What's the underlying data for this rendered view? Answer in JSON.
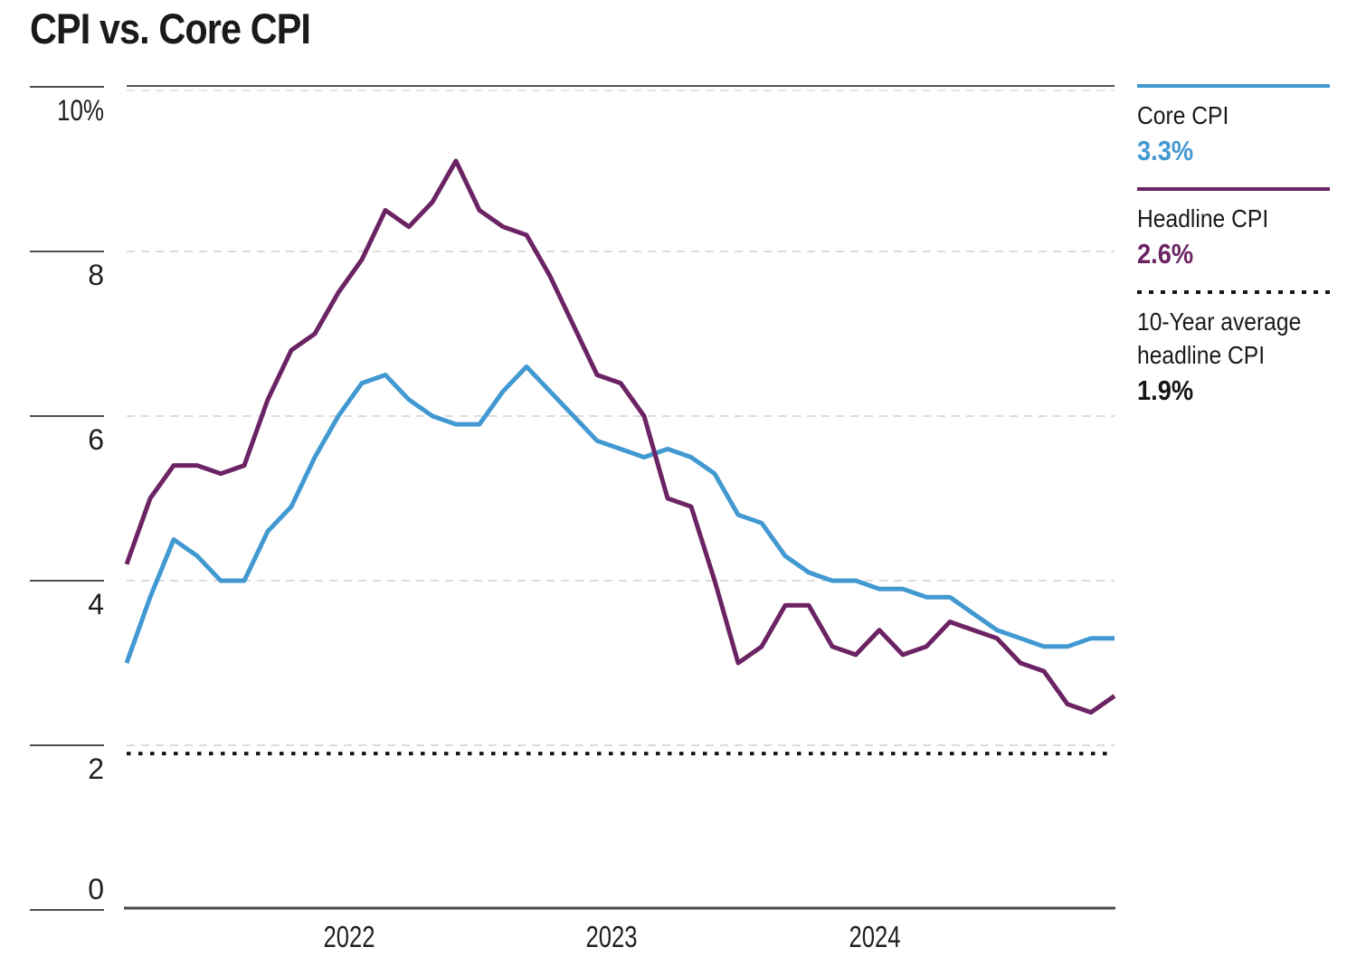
{
  "chart_data": {
    "type": "line",
    "title": "CPI vs. Core CPI",
    "unit": "percent, year-over-year",
    "ylim": [
      0,
      10
    ],
    "grid": "dashed horizontal at 2,4,6,8",
    "y_ticks": [
      {
        "value": 10,
        "label": "10%"
      },
      {
        "value": 8,
        "label": "8"
      },
      {
        "value": 6,
        "label": "6"
      },
      {
        "value": 4,
        "label": "4"
      },
      {
        "value": 2,
        "label": "2"
      },
      {
        "value": 0,
        "label": "0"
      }
    ],
    "x_year_labels": [
      "2022",
      "2023",
      "2024"
    ],
    "x": [
      "2021-04",
      "2021-05",
      "2021-06",
      "2021-07",
      "2021-08",
      "2021-09",
      "2021-10",
      "2021-11",
      "2021-12",
      "2022-01",
      "2022-02",
      "2022-03",
      "2022-04",
      "2022-05",
      "2022-06",
      "2022-07",
      "2022-08",
      "2022-09",
      "2022-10",
      "2022-11",
      "2022-12",
      "2023-01",
      "2023-02",
      "2023-03",
      "2023-04",
      "2023-05",
      "2023-06",
      "2023-07",
      "2023-08",
      "2023-09",
      "2023-10",
      "2023-11",
      "2023-12",
      "2024-01",
      "2024-02",
      "2024-03",
      "2024-04",
      "2024-05",
      "2024-06",
      "2024-07",
      "2024-08",
      "2024-09",
      "2024-10"
    ],
    "series": [
      {
        "name": "Core CPI",
        "color": "#4299D2",
        "style": "solid",
        "latest": "3.3%",
        "values": [
          3.0,
          3.8,
          4.5,
          4.3,
          4.0,
          4.0,
          4.6,
          4.9,
          5.5,
          6.0,
          6.4,
          6.5,
          6.2,
          6.0,
          5.9,
          5.9,
          6.3,
          6.6,
          6.3,
          6.0,
          5.7,
          5.6,
          5.5,
          5.6,
          5.5,
          5.3,
          4.8,
          4.7,
          4.3,
          4.1,
          4.0,
          4.0,
          3.9,
          3.9,
          3.8,
          3.8,
          3.6,
          3.4,
          3.3,
          3.2,
          3.2,
          3.3,
          3.3
        ]
      },
      {
        "name": "Headline CPI",
        "color": "#6B2363",
        "style": "solid",
        "latest": "2.6%",
        "values": [
          4.2,
          5.0,
          5.4,
          5.4,
          5.3,
          5.4,
          6.2,
          6.8,
          7.0,
          7.5,
          7.9,
          8.5,
          8.3,
          8.6,
          9.1,
          8.5,
          8.3,
          8.2,
          7.7,
          7.1,
          6.5,
          6.4,
          6.0,
          5.0,
          4.9,
          4.0,
          3.0,
          3.2,
          3.7,
          3.7,
          3.2,
          3.1,
          3.4,
          3.1,
          3.2,
          3.5,
          3.4,
          3.3,
          3.0,
          2.9,
          2.5,
          2.4,
          2.6
        ]
      }
    ],
    "reference_line": {
      "name": "10-Year average headline CPI",
      "value": 1.9,
      "label": "1.9%",
      "style": "dotted",
      "color": "#151515"
    },
    "legend_position": "right"
  },
  "legend": {
    "items": [
      {
        "label": "Core CPI",
        "value": "3.3%",
        "color": "#4299D2",
        "line_style": "solid"
      },
      {
        "label": "Headline CPI",
        "value": "2.6%",
        "color": "#6B2363",
        "line_style": "solid"
      },
      {
        "label": "10-Year average headline CPI",
        "value": "1.9%",
        "color": "#151515",
        "line_style": "dotted"
      }
    ]
  }
}
